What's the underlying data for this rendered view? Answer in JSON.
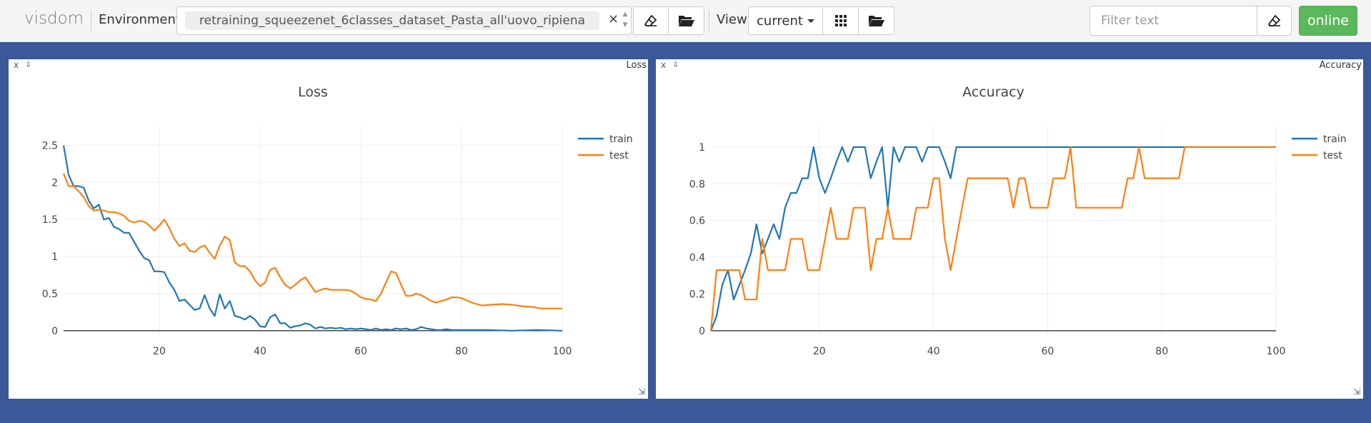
{
  "navbar": {
    "brand": "visdom",
    "env_label": "Environment",
    "env_value": "retraining_squeezenet_6classes_dataset_Pasta_all'uovo_ripiena",
    "env_clear": "×",
    "view_label": "View",
    "view_select": "current",
    "filter_placeholder": "Filter text",
    "status": "online",
    "status_color": "#5cb85c"
  },
  "panes": [
    {
      "corner_title": "Loss",
      "close": "x",
      "chart_data": {
        "type": "line",
        "title": "Loss",
        "xlim": [
          1,
          100
        ],
        "ylim": [
          -0.05,
          2.6
        ],
        "xticks": [
          20,
          40,
          60,
          80,
          100
        ],
        "yticks": [
          0,
          0.5,
          1,
          1.5,
          2,
          2.5
        ],
        "ytick_labels": [
          "0",
          "0.5",
          "1",
          "1.5",
          "2",
          "2.5"
        ],
        "legend": "top-right",
        "series": [
          {
            "name": "train",
            "color": "#1f77b4",
            "x": [
              1,
              2,
              3,
              4,
              5,
              6,
              7,
              8,
              9,
              10,
              11,
              12,
              13,
              14,
              15,
              16,
              17,
              18,
              19,
              20,
              21,
              22,
              23,
              24,
              25,
              26,
              27,
              28,
              29,
              30,
              31,
              32,
              33,
              34,
              35,
              36,
              37,
              38,
              39,
              40,
              41,
              42,
              43,
              44,
              45,
              46,
              47,
              48,
              49,
              50,
              51,
              52,
              53,
              54,
              55,
              56,
              57,
              58,
              59,
              60,
              61,
              62,
              63,
              64,
              65,
              66,
              67,
              68,
              69,
              70,
              71,
              72,
              73,
              74,
              75,
              76,
              77,
              78,
              79,
              80,
              85,
              90,
              95,
              100
            ],
            "y": [
              2.5,
              2.1,
              1.95,
              1.95,
              1.93,
              1.75,
              1.65,
              1.7,
              1.5,
              1.52,
              1.4,
              1.37,
              1.32,
              1.32,
              1.2,
              1.08,
              0.98,
              0.95,
              0.8,
              0.8,
              0.79,
              0.65,
              0.55,
              0.4,
              0.42,
              0.35,
              0.28,
              0.3,
              0.48,
              0.3,
              0.2,
              0.49,
              0.3,
              0.4,
              0.2,
              0.18,
              0.15,
              0.2,
              0.15,
              0.06,
              0.05,
              0.18,
              0.22,
              0.1,
              0.1,
              0.04,
              0.06,
              0.07,
              0.1,
              0.08,
              0.03,
              0.05,
              0.03,
              0.04,
              0.03,
              0.04,
              0.02,
              0.03,
              0.02,
              0.03,
              0.02,
              0.01,
              0.03,
              0.01,
              0.02,
              0.01,
              0.03,
              0.02,
              0.03,
              0.01,
              0.02,
              0.05,
              0.03,
              0.02,
              0.01,
              0.01,
              0.02,
              0.01,
              0.01,
              0.01,
              0.01,
              0.0,
              0.01,
              0.0
            ]
          },
          {
            "name": "test",
            "color": "#ff7f0e",
            "x": [
              1,
              2,
              3,
              4,
              5,
              6,
              7,
              8,
              9,
              10,
              11,
              12,
              13,
              14,
              15,
              16,
              17,
              18,
              19,
              20,
              21,
              22,
              23,
              24,
              25,
              26,
              27,
              28,
              29,
              30,
              31,
              32,
              33,
              34,
              35,
              36,
              37,
              38,
              39,
              40,
              41,
              42,
              43,
              44,
              45,
              46,
              47,
              48,
              49,
              50,
              51,
              52,
              53,
              54,
              55,
              56,
              57,
              58,
              59,
              60,
              61,
              62,
              63,
              64,
              65,
              66,
              67,
              68,
              69,
              70,
              71,
              72,
              73,
              74,
              75,
              76,
              77,
              78,
              79,
              80,
              81,
              82,
              83,
              84,
              86,
              88,
              90,
              92,
              94,
              96,
              98,
              100
            ],
            "y": [
              2.12,
              1.95,
              1.95,
              1.88,
              1.8,
              1.68,
              1.62,
              1.63,
              1.62,
              1.6,
              1.6,
              1.58,
              1.55,
              1.48,
              1.46,
              1.48,
              1.47,
              1.42,
              1.35,
              1.42,
              1.5,
              1.38,
              1.24,
              1.14,
              1.18,
              1.08,
              1.06,
              1.12,
              1.15,
              1.05,
              0.97,
              1.15,
              1.27,
              1.22,
              0.92,
              0.87,
              0.87,
              0.8,
              0.68,
              0.6,
              0.65,
              0.82,
              0.85,
              0.72,
              0.62,
              0.57,
              0.62,
              0.68,
              0.72,
              0.62,
              0.52,
              0.55,
              0.57,
              0.55,
              0.55,
              0.55,
              0.55,
              0.54,
              0.5,
              0.45,
              0.43,
              0.42,
              0.4,
              0.5,
              0.65,
              0.8,
              0.78,
              0.62,
              0.47,
              0.47,
              0.5,
              0.48,
              0.44,
              0.4,
              0.38,
              0.4,
              0.42,
              0.45,
              0.45,
              0.44,
              0.41,
              0.38,
              0.36,
              0.34,
              0.35,
              0.36,
              0.35,
              0.33,
              0.32,
              0.3,
              0.3,
              0.3
            ]
          }
        ]
      }
    },
    {
      "corner_title": "Accuracy",
      "close": "x",
      "chart_data": {
        "type": "line",
        "title": "Accuracy",
        "xlim": [
          1,
          100
        ],
        "ylim": [
          -0.02,
          1.05
        ],
        "xticks": [
          20,
          40,
          60,
          80,
          100
        ],
        "yticks": [
          0,
          0.2,
          0.4,
          0.6,
          0.8,
          1
        ],
        "ytick_labels": [
          "0",
          "0.2",
          "0.4",
          "0.6",
          "0.8",
          "1"
        ],
        "legend": "top-right",
        "series": [
          {
            "name": "train",
            "color": "#1f77b4",
            "x": [
              1,
              2,
              3,
              4,
              5,
              6,
              7,
              8,
              9,
              10,
              11,
              12,
              13,
              14,
              15,
              16,
              17,
              18,
              19,
              20,
              21,
              22,
              23,
              24,
              25,
              26,
              27,
              28,
              29,
              30,
              31,
              32,
              33,
              34,
              35,
              36,
              37,
              38,
              39,
              40,
              41,
              42,
              43,
              44,
              45,
              50,
              60,
              70,
              80,
              90,
              100
            ],
            "y": [
              0.0,
              0.08,
              0.25,
              0.33,
              0.17,
              0.25,
              0.33,
              0.42,
              0.58,
              0.42,
              0.5,
              0.58,
              0.5,
              0.67,
              0.75,
              0.75,
              0.83,
              0.83,
              1.0,
              0.83,
              0.75,
              0.83,
              0.92,
              1.0,
              0.92,
              1.0,
              1.0,
              1.0,
              0.83,
              0.92,
              1.0,
              0.67,
              1.0,
              0.92,
              1.0,
              1.0,
              1.0,
              0.92,
              1.0,
              1.0,
              1.0,
              0.92,
              0.83,
              1.0,
              1.0,
              1.0,
              1.0,
              1.0,
              1.0,
              1.0,
              1.0
            ]
          },
          {
            "name": "test",
            "color": "#ff7f0e",
            "x": [
              1,
              2,
              3,
              4,
              5,
              6,
              7,
              8,
              9,
              10,
              11,
              12,
              13,
              14,
              15,
              16,
              17,
              18,
              19,
              20,
              21,
              22,
              23,
              24,
              25,
              26,
              27,
              28,
              29,
              30,
              31,
              32,
              33,
              34,
              35,
              36,
              37,
              38,
              39,
              40,
              41,
              42,
              43,
              44,
              45,
              46,
              47,
              48,
              49,
              50,
              51,
              52,
              53,
              54,
              55,
              56,
              57,
              58,
              59,
              60,
              61,
              62,
              63,
              64,
              65,
              66,
              67,
              68,
              69,
              70,
              71,
              72,
              73,
              74,
              75,
              76,
              77,
              78,
              79,
              80,
              81,
              82,
              83,
              84,
              86,
              88,
              90,
              92,
              94,
              96,
              98,
              100
            ],
            "y": [
              0.0,
              0.33,
              0.33,
              0.33,
              0.33,
              0.33,
              0.17,
              0.17,
              0.17,
              0.5,
              0.33,
              0.33,
              0.33,
              0.33,
              0.5,
              0.5,
              0.5,
              0.33,
              0.33,
              0.33,
              0.5,
              0.67,
              0.5,
              0.5,
              0.5,
              0.67,
              0.67,
              0.67,
              0.33,
              0.5,
              0.5,
              0.67,
              0.5,
              0.5,
              0.5,
              0.5,
              0.67,
              0.67,
              0.67,
              0.83,
              0.83,
              0.5,
              0.33,
              0.5,
              0.67,
              0.83,
              0.83,
              0.83,
              0.83,
              0.83,
              0.83,
              0.83,
              0.83,
              0.67,
              0.83,
              0.83,
              0.67,
              0.67,
              0.67,
              0.67,
              0.83,
              0.83,
              0.83,
              1.0,
              0.67,
              0.67,
              0.67,
              0.67,
              0.67,
              0.67,
              0.67,
              0.67,
              0.67,
              0.83,
              0.83,
              1.0,
              0.83,
              0.83,
              0.83,
              0.83,
              0.83,
              0.83,
              0.83,
              1.0,
              1.0,
              1.0,
              1.0,
              1.0,
              1.0,
              1.0,
              1.0,
              1.0
            ]
          }
        ]
      }
    }
  ]
}
